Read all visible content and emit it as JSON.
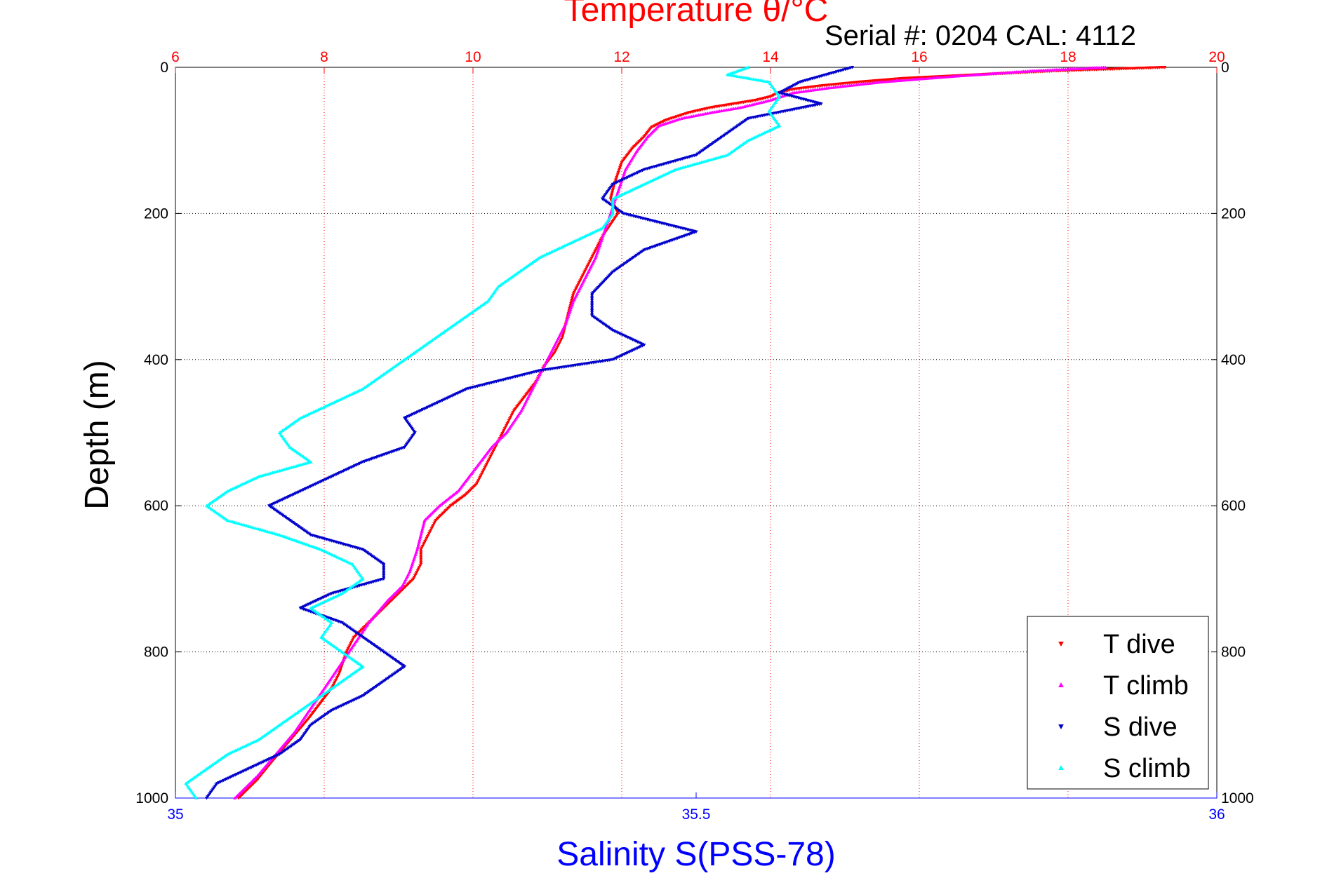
{
  "header": {
    "serial_text": "Serial #: 0204  CAL: 4112"
  },
  "colors": {
    "temperature_axis": "#ff0000",
    "salinity_axis": "#0000ff",
    "t_dive": "#ff0000",
    "t_climb": "#ff00ff",
    "s_dive": "#0000cc",
    "s_climb": "#00ffff",
    "grid": "#000000",
    "frame": "#000000"
  },
  "chart_data": {
    "type": "scatter",
    "title": "Temperature θ/°C",
    "xlabel": "Salinity S(PSS-78)",
    "ylabel": "Depth (m)",
    "grid": true,
    "legend_position": "bottom-right",
    "y_axis": {
      "label": "Depth (m)",
      "range": [
        0,
        1000
      ],
      "reversed": true,
      "ticks": [
        "0",
        "200",
        "400",
        "600",
        "800",
        "1000"
      ],
      "tick_values": [
        0,
        200,
        400,
        600,
        800,
        1000
      ]
    },
    "x_top": {
      "label": "Temperature θ/°C",
      "range": [
        6,
        20
      ],
      "ticks": [
        "6",
        "8",
        "10",
        "12",
        "14",
        "16",
        "18",
        "20"
      ],
      "tick_values": [
        6,
        8,
        10,
        12,
        14,
        16,
        18,
        20
      ]
    },
    "x_bottom": {
      "label": "Salinity S(PSS-78)",
      "range": [
        35,
        36
      ],
      "ticks": [
        "35",
        "35.5",
        "36"
      ],
      "tick_values": [
        35,
        35.5,
        36
      ]
    },
    "series": [
      {
        "name": "T dive",
        "axis": "temperature",
        "marker": "triangle-down",
        "points": [
          [
            19.3,
            0
          ],
          [
            17.8,
            5
          ],
          [
            16.8,
            10
          ],
          [
            15.8,
            15
          ],
          [
            15.2,
            20
          ],
          [
            14.7,
            25
          ],
          [
            14.3,
            30
          ],
          [
            14.1,
            35
          ],
          [
            14.0,
            40
          ],
          [
            13.8,
            45
          ],
          [
            13.5,
            50
          ],
          [
            13.2,
            55
          ],
          [
            12.9,
            62
          ],
          [
            12.6,
            72
          ],
          [
            12.4,
            82
          ],
          [
            12.3,
            95
          ],
          [
            12.15,
            110
          ],
          [
            12.0,
            130
          ],
          [
            11.9,
            160
          ],
          [
            11.85,
            180
          ],
          [
            11.9,
            190
          ],
          [
            11.95,
            200
          ],
          [
            11.85,
            215
          ],
          [
            11.75,
            230
          ],
          [
            11.65,
            250
          ],
          [
            11.55,
            270
          ],
          [
            11.45,
            290
          ],
          [
            11.35,
            310
          ],
          [
            11.3,
            330
          ],
          [
            11.25,
            350
          ],
          [
            11.2,
            370
          ],
          [
            11.1,
            390
          ],
          [
            10.95,
            410
          ],
          [
            10.85,
            430
          ],
          [
            10.7,
            450
          ],
          [
            10.55,
            470
          ],
          [
            10.45,
            490
          ],
          [
            10.35,
            510
          ],
          [
            10.25,
            530
          ],
          [
            10.15,
            550
          ],
          [
            10.05,
            570
          ],
          [
            9.9,
            585
          ],
          [
            9.7,
            600
          ],
          [
            9.5,
            620
          ],
          [
            9.4,
            640
          ],
          [
            9.3,
            660
          ],
          [
            9.3,
            680
          ],
          [
            9.2,
            700
          ],
          [
            9.0,
            720
          ],
          [
            8.8,
            740
          ],
          [
            8.6,
            760
          ],
          [
            8.4,
            780
          ],
          [
            8.3,
            800
          ],
          [
            8.2,
            830
          ],
          [
            8.1,
            850
          ],
          [
            7.95,
            870
          ],
          [
            7.8,
            890
          ],
          [
            7.55,
            920
          ],
          [
            7.3,
            950
          ],
          [
            7.1,
            975
          ],
          [
            6.85,
            1000
          ]
        ]
      },
      {
        "name": "T climb",
        "axis": "temperature",
        "marker": "triangle-up",
        "points": [
          [
            18.5,
            0
          ],
          [
            17.5,
            5
          ],
          [
            16.5,
            12
          ],
          [
            15.5,
            20
          ],
          [
            14.8,
            28
          ],
          [
            14.3,
            35
          ],
          [
            14.0,
            45
          ],
          [
            13.6,
            55
          ],
          [
            13.2,
            62
          ],
          [
            12.8,
            70
          ],
          [
            12.5,
            80
          ],
          [
            12.35,
            95
          ],
          [
            12.2,
            115
          ],
          [
            12.05,
            140
          ],
          [
            11.95,
            170
          ],
          [
            11.85,
            200
          ],
          [
            11.75,
            230
          ],
          [
            11.65,
            260
          ],
          [
            11.5,
            290
          ],
          [
            11.35,
            320
          ],
          [
            11.25,
            350
          ],
          [
            11.1,
            380
          ],
          [
            10.95,
            410
          ],
          [
            10.8,
            440
          ],
          [
            10.65,
            470
          ],
          [
            10.45,
            500
          ],
          [
            10.25,
            520
          ],
          [
            10.1,
            540
          ],
          [
            9.95,
            560
          ],
          [
            9.8,
            580
          ],
          [
            9.55,
            600
          ],
          [
            9.35,
            620
          ],
          [
            9.3,
            640
          ],
          [
            9.25,
            660
          ],
          [
            9.15,
            690
          ],
          [
            9.05,
            710
          ],
          [
            8.85,
            730
          ],
          [
            8.6,
            760
          ],
          [
            8.4,
            790
          ],
          [
            8.2,
            820
          ],
          [
            8.0,
            850
          ],
          [
            7.8,
            880
          ],
          [
            7.6,
            910
          ],
          [
            7.35,
            940
          ],
          [
            7.1,
            970
          ],
          [
            6.8,
            1000
          ]
        ]
      },
      {
        "name": "S dive",
        "axis": "salinity",
        "marker": "triangle-down",
        "points": [
          [
            35.65,
            0
          ],
          [
            35.6,
            20
          ],
          [
            35.58,
            35
          ],
          [
            35.62,
            50
          ],
          [
            35.55,
            70
          ],
          [
            35.52,
            100
          ],
          [
            35.5,
            120
          ],
          [
            35.45,
            140
          ],
          [
            35.42,
            160
          ],
          [
            35.41,
            180
          ],
          [
            35.43,
            200
          ],
          [
            35.5,
            225
          ],
          [
            35.45,
            250
          ],
          [
            35.42,
            280
          ],
          [
            35.4,
            310
          ],
          [
            35.4,
            340
          ],
          [
            35.42,
            360
          ],
          [
            35.45,
            380
          ],
          [
            35.42,
            400
          ],
          [
            35.35,
            415
          ],
          [
            35.28,
            440
          ],
          [
            35.25,
            460
          ],
          [
            35.22,
            480
          ],
          [
            35.23,
            500
          ],
          [
            35.22,
            520
          ],
          [
            35.18,
            540
          ],
          [
            35.15,
            560
          ],
          [
            35.12,
            580
          ],
          [
            35.09,
            600
          ],
          [
            35.11,
            620
          ],
          [
            35.13,
            640
          ],
          [
            35.18,
            660
          ],
          [
            35.2,
            680
          ],
          [
            35.2,
            700
          ],
          [
            35.15,
            720
          ],
          [
            35.12,
            740
          ],
          [
            35.16,
            760
          ],
          [
            35.18,
            780
          ],
          [
            35.2,
            800
          ],
          [
            35.22,
            820
          ],
          [
            35.2,
            840
          ],
          [
            35.18,
            860
          ],
          [
            35.15,
            880
          ],
          [
            35.13,
            900
          ],
          [
            35.12,
            920
          ],
          [
            35.1,
            940
          ],
          [
            35.07,
            960
          ],
          [
            35.04,
            980
          ],
          [
            35.03,
            1000
          ]
        ]
      },
      {
        "name": "S climb",
        "axis": "salinity",
        "marker": "triangle-up",
        "points": [
          [
            35.55,
            0
          ],
          [
            35.53,
            10
          ],
          [
            35.57,
            20
          ],
          [
            35.58,
            40
          ],
          [
            35.57,
            60
          ],
          [
            35.58,
            80
          ],
          [
            35.55,
            100
          ],
          [
            35.53,
            120
          ],
          [
            35.48,
            140
          ],
          [
            35.45,
            160
          ],
          [
            35.42,
            180
          ],
          [
            35.42,
            200
          ],
          [
            35.41,
            220
          ],
          [
            35.38,
            240
          ],
          [
            35.35,
            260
          ],
          [
            35.33,
            280
          ],
          [
            35.31,
            300
          ],
          [
            35.3,
            320
          ],
          [
            35.28,
            340
          ],
          [
            35.26,
            360
          ],
          [
            35.24,
            380
          ],
          [
            35.22,
            400
          ],
          [
            35.2,
            420
          ],
          [
            35.18,
            440
          ],
          [
            35.15,
            460
          ],
          [
            35.12,
            480
          ],
          [
            35.1,
            500
          ],
          [
            35.11,
            520
          ],
          [
            35.13,
            540
          ],
          [
            35.08,
            560
          ],
          [
            35.05,
            580
          ],
          [
            35.03,
            600
          ],
          [
            35.05,
            620
          ],
          [
            35.1,
            640
          ],
          [
            35.14,
            660
          ],
          [
            35.17,
            680
          ],
          [
            35.18,
            700
          ],
          [
            35.16,
            720
          ],
          [
            35.13,
            740
          ],
          [
            35.15,
            760
          ],
          [
            35.14,
            780
          ],
          [
            35.16,
            800
          ],
          [
            35.18,
            820
          ],
          [
            35.16,
            840
          ],
          [
            35.14,
            860
          ],
          [
            35.12,
            880
          ],
          [
            35.1,
            900
          ],
          [
            35.08,
            920
          ],
          [
            35.05,
            940
          ],
          [
            35.03,
            960
          ],
          [
            35.01,
            980
          ],
          [
            35.02,
            1000
          ]
        ]
      }
    ]
  }
}
